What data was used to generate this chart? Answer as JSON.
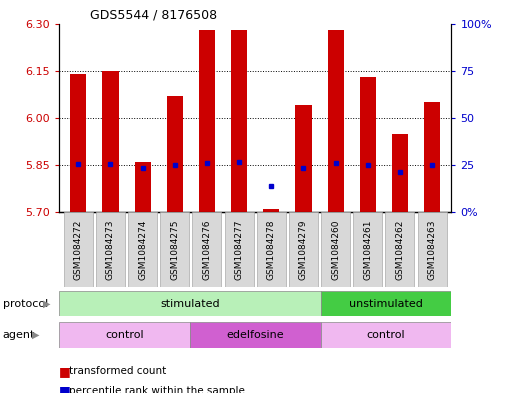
{
  "title": "GDS5544 / 8176508",
  "samples": [
    "GSM1084272",
    "GSM1084273",
    "GSM1084274",
    "GSM1084275",
    "GSM1084276",
    "GSM1084277",
    "GSM1084278",
    "GSM1084279",
    "GSM1084260",
    "GSM1084261",
    "GSM1084262",
    "GSM1084263"
  ],
  "red_values": [
    6.14,
    6.15,
    5.86,
    6.07,
    6.28,
    6.28,
    5.71,
    6.04,
    6.28,
    6.13,
    5.95,
    6.05
  ],
  "blue_values": [
    25.5,
    25.5,
    23.5,
    25.0,
    26.0,
    26.5,
    14.0,
    23.5,
    26.0,
    25.0,
    21.5,
    25.0
  ],
  "ylim_left": [
    5.7,
    6.3
  ],
  "ylim_right": [
    0,
    100
  ],
  "yticks_left": [
    5.7,
    5.85,
    6.0,
    6.15,
    6.3
  ],
  "yticks_right": [
    0,
    25,
    50,
    75,
    100
  ],
  "ytick_labels_right": [
    "0%",
    "25",
    "50",
    "75",
    "100%"
  ],
  "grid_values": [
    5.85,
    6.0,
    6.15
  ],
  "bar_color": "#cc0000",
  "dot_color": "#0000cc",
  "bar_base": 5.7,
  "protocol_groups": [
    {
      "label": "stimulated",
      "start": 0,
      "end": 7,
      "color": "#b8f0b8"
    },
    {
      "label": "unstimulated",
      "start": 8,
      "end": 11,
      "color": "#44cc44"
    }
  ],
  "agent_groups": [
    {
      "label": "control",
      "start": 0,
      "end": 3,
      "color": "#f0b8f0"
    },
    {
      "label": "edelfosine",
      "start": 4,
      "end": 7,
      "color": "#d060d0"
    },
    {
      "label": "control",
      "start": 8,
      "end": 11,
      "color": "#f0b8f0"
    }
  ],
  "legend_items": [
    {
      "color": "#cc0000",
      "label": "transformed count"
    },
    {
      "color": "#0000cc",
      "label": "percentile rank within the sample"
    }
  ],
  "bar_width": 0.5,
  "tick_label_color_left": "#cc0000",
  "tick_label_color_right": "#0000cc",
  "background_color": "#ffffff"
}
